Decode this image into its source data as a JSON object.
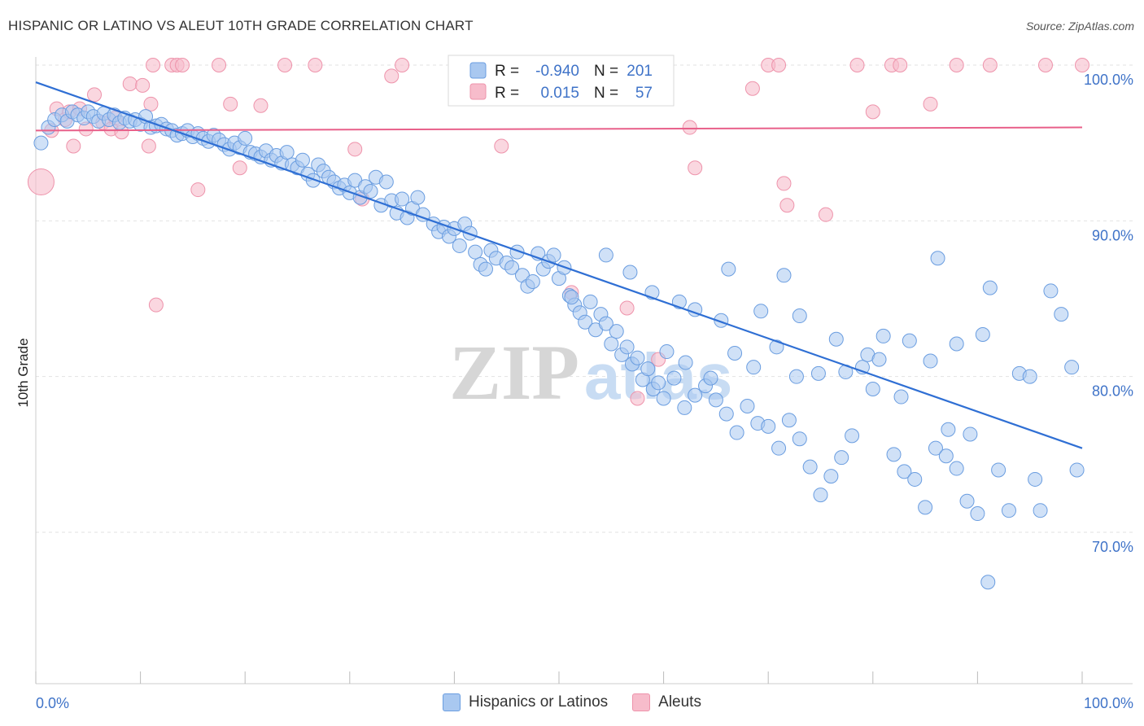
{
  "header": {
    "title": "HISPANIC OR LATINO VS ALEUT 10TH GRADE CORRELATION CHART",
    "source": "Source: ZipAtlas.com"
  },
  "watermark": {
    "zip": "ZIP",
    "atlas": "atlas"
  },
  "legend": {
    "rows": [
      {
        "r_label": "R =",
        "r_value": "-0.940",
        "n_label": "N =",
        "n_value": "201"
      },
      {
        "r_label": "R =",
        "r_value": "0.015",
        "n_label": "N =",
        "n_value": "57"
      }
    ]
  },
  "bottom_legend": {
    "series1": "Hispanics or Latinos",
    "series2": "Aleuts"
  },
  "colors": {
    "blue_fill": "#a9c8f0",
    "blue_stroke": "#6a9de0",
    "blue_line": "#2f6fd4",
    "pink_fill": "#f7bccb",
    "pink_stroke": "#ee93ab",
    "pink_line": "#e8608a",
    "axis_text": "#3f73c8"
  },
  "chart_data": {
    "type": "scatter",
    "xlabel": "",
    "ylabel": "10th Grade",
    "xlim": [
      0,
      100
    ],
    "ylim": [
      60.5,
      101
    ],
    "x_tick_labels": {
      "left": "0.0%",
      "right": "100.0%"
    },
    "y_ticks": [
      {
        "value": 100,
        "label": "100.0%"
      },
      {
        "value": 90,
        "label": "90.0%"
      },
      {
        "value": 80,
        "label": "80.0%"
      },
      {
        "value": 70,
        "label": "70.0%"
      }
    ],
    "series": [
      {
        "name": "Hispanics or Latinos",
        "trend": {
          "x1": 0,
          "y1": 98.9,
          "x2": 100,
          "y2": 75.4
        },
        "points": [
          [
            0.5,
            95.0
          ],
          [
            1.2,
            96.0
          ],
          [
            1.8,
            96.5
          ],
          [
            2.5,
            96.8
          ],
          [
            3.0,
            96.4
          ],
          [
            3.5,
            97.0
          ],
          [
            4.0,
            96.8
          ],
          [
            4.6,
            96.6
          ],
          [
            5.0,
            97.0
          ],
          [
            5.5,
            96.7
          ],
          [
            6.0,
            96.4
          ],
          [
            6.5,
            96.9
          ],
          [
            7.0,
            96.5
          ],
          [
            7.5,
            96.8
          ],
          [
            8.0,
            96.3
          ],
          [
            8.5,
            96.6
          ],
          [
            9.0,
            96.4
          ],
          [
            9.5,
            96.5
          ],
          [
            10.0,
            96.2
          ],
          [
            10.5,
            96.7
          ],
          [
            11.0,
            96.0
          ],
          [
            11.5,
            96.1
          ],
          [
            12.0,
            96.2
          ],
          [
            12.5,
            95.9
          ],
          [
            13.0,
            95.8
          ],
          [
            13.5,
            95.5
          ],
          [
            14.0,
            95.6
          ],
          [
            14.5,
            95.8
          ],
          [
            15.0,
            95.4
          ],
          [
            15.5,
            95.6
          ],
          [
            16.0,
            95.3
          ],
          [
            16.5,
            95.1
          ],
          [
            17.0,
            95.5
          ],
          [
            17.5,
            95.2
          ],
          [
            18.0,
            94.9
          ],
          [
            18.5,
            94.6
          ],
          [
            19.0,
            95.0
          ],
          [
            19.5,
            94.7
          ],
          [
            20.0,
            95.3
          ],
          [
            20.5,
            94.4
          ],
          [
            21.0,
            94.3
          ],
          [
            21.5,
            94.1
          ],
          [
            22.0,
            94.5
          ],
          [
            22.5,
            93.9
          ],
          [
            23.0,
            94.2
          ],
          [
            23.5,
            93.7
          ],
          [
            24.0,
            94.4
          ],
          [
            24.5,
            93.6
          ],
          [
            25.0,
            93.4
          ],
          [
            25.5,
            93.9
          ],
          [
            26.0,
            93.0
          ],
          [
            26.5,
            92.6
          ],
          [
            27.0,
            93.6
          ],
          [
            27.5,
            93.2
          ],
          [
            28.0,
            92.8
          ],
          [
            28.5,
            92.5
          ],
          [
            29.0,
            92.1
          ],
          [
            29.5,
            92.3
          ],
          [
            30.0,
            91.8
          ],
          [
            30.5,
            92.6
          ],
          [
            31.0,
            91.5
          ],
          [
            31.5,
            92.2
          ],
          [
            32.0,
            91.9
          ],
          [
            32.5,
            92.8
          ],
          [
            33.0,
            91.0
          ],
          [
            33.5,
            92.5
          ],
          [
            34.0,
            91.3
          ],
          [
            34.5,
            90.5
          ],
          [
            35.0,
            91.4
          ],
          [
            35.5,
            90.2
          ],
          [
            36.0,
            90.8
          ],
          [
            36.5,
            91.5
          ],
          [
            37.0,
            90.4
          ],
          [
            38.0,
            89.8
          ],
          [
            38.5,
            89.3
          ],
          [
            39.0,
            89.6
          ],
          [
            39.5,
            89.0
          ],
          [
            40.0,
            89.5
          ],
          [
            40.5,
            88.4
          ],
          [
            41.0,
            89.8
          ],
          [
            41.5,
            89.2
          ],
          [
            42.0,
            88.0
          ],
          [
            42.5,
            87.2
          ],
          [
            43.0,
            86.9
          ],
          [
            43.5,
            88.1
          ],
          [
            44.0,
            87.6
          ],
          [
            45.0,
            87.3
          ],
          [
            45.5,
            87.0
          ],
          [
            46.0,
            88.0
          ],
          [
            46.5,
            86.5
          ],
          [
            47.0,
            85.8
          ],
          [
            47.5,
            86.1
          ],
          [
            48.0,
            87.9
          ],
          [
            48.5,
            86.9
          ],
          [
            49.0,
            87.4
          ],
          [
            49.5,
            87.8
          ],
          [
            50.0,
            86.3
          ],
          [
            50.5,
            87.0
          ],
          [
            51.0,
            85.2
          ],
          [
            51.5,
            84.6
          ],
          [
            52.0,
            84.1
          ],
          [
            52.5,
            83.5
          ],
          [
            53.0,
            84.8
          ],
          [
            53.5,
            83.0
          ],
          [
            54.0,
            84.0
          ],
          [
            54.5,
            83.4
          ],
          [
            55.0,
            82.1
          ],
          [
            55.5,
            82.9
          ],
          [
            56.0,
            81.4
          ],
          [
            56.5,
            81.9
          ],
          [
            57.0,
            80.8
          ],
          [
            57.5,
            81.2
          ],
          [
            58.0,
            79.8
          ],
          [
            58.5,
            80.5
          ],
          [
            59.0,
            79.2
          ],
          [
            59.5,
            79.6
          ],
          [
            60.0,
            78.6
          ],
          [
            61.0,
            79.9
          ],
          [
            62.0,
            78.0
          ],
          [
            63.0,
            78.8
          ],
          [
            64.0,
            79.4
          ],
          [
            65.0,
            78.5
          ],
          [
            66.0,
            77.6
          ],
          [
            67.0,
            76.4
          ],
          [
            68.0,
            78.1
          ],
          [
            69.0,
            77.0
          ],
          [
            70.0,
            76.8
          ],
          [
            71.0,
            75.4
          ],
          [
            72.0,
            77.2
          ],
          [
            73.0,
            76.0
          ],
          [
            74.0,
            74.2
          ],
          [
            75.0,
            72.4
          ],
          [
            76.0,
            73.6
          ],
          [
            77.0,
            74.8
          ],
          [
            78.0,
            76.2
          ],
          [
            79.0,
            80.6
          ],
          [
            80.0,
            79.2
          ],
          [
            81.0,
            82.6
          ],
          [
            82.0,
            75.0
          ],
          [
            83.0,
            73.9
          ],
          [
            84.0,
            73.4
          ],
          [
            85.0,
            71.6
          ],
          [
            86.0,
            75.4
          ],
          [
            87.0,
            74.9
          ],
          [
            88.0,
            74.1
          ],
          [
            89.0,
            72.0
          ],
          [
            90.0,
            71.2
          ],
          [
            91.0,
            66.8
          ],
          [
            92.0,
            74.0
          ],
          [
            93.0,
            71.4
          ],
          [
            94.0,
            80.2
          ],
          [
            95.0,
            80.0
          ],
          [
            95.5,
            73.4
          ],
          [
            96.0,
            71.4
          ],
          [
            97.0,
            85.5
          ],
          [
            98.0,
            84.0
          ],
          [
            99.0,
            80.6
          ],
          [
            99.5,
            74.0
          ],
          [
            51.2,
            85.1
          ],
          [
            54.5,
            87.8
          ],
          [
            56.8,
            86.7
          ],
          [
            58.9,
            85.4
          ],
          [
            61.5,
            84.8
          ],
          [
            63.0,
            84.3
          ],
          [
            65.5,
            83.6
          ],
          [
            69.3,
            84.2
          ],
          [
            73.0,
            83.9
          ],
          [
            76.5,
            82.4
          ],
          [
            79.5,
            81.4
          ],
          [
            83.5,
            82.3
          ],
          [
            88.0,
            82.1
          ],
          [
            91.2,
            85.7
          ],
          [
            90.5,
            82.7
          ],
          [
            85.5,
            81.0
          ],
          [
            86.2,
            87.6
          ],
          [
            66.8,
            81.5
          ],
          [
            70.8,
            81.9
          ],
          [
            74.8,
            80.2
          ],
          [
            77.4,
            80.3
          ],
          [
            80.6,
            81.1
          ],
          [
            82.7,
            78.7
          ],
          [
            87.2,
            76.6
          ],
          [
            89.3,
            76.3
          ],
          [
            72.7,
            80.0
          ],
          [
            68.6,
            80.6
          ],
          [
            64.5,
            79.9
          ],
          [
            62.1,
            80.9
          ],
          [
            60.3,
            81.6
          ],
          [
            71.5,
            86.5
          ],
          [
            66.2,
            86.9
          ]
        ]
      },
      {
        "name": "Aleuts",
        "trend": {
          "x1": 0,
          "y1": 95.8,
          "x2": 100,
          "y2": 96.0
        },
        "points": [
          [
            0.5,
            92.5
          ],
          [
            1.5,
            95.8
          ],
          [
            2.0,
            97.2
          ],
          [
            2.8,
            96.5
          ],
          [
            3.2,
            97.0
          ],
          [
            3.6,
            94.8
          ],
          [
            4.2,
            97.2
          ],
          [
            4.8,
            95.9
          ],
          [
            5.6,
            98.1
          ],
          [
            6.4,
            96.3
          ],
          [
            7.2,
            95.9
          ],
          [
            7.6,
            96.6
          ],
          [
            8.2,
            95.7
          ],
          [
            9.0,
            98.8
          ],
          [
            10.2,
            98.7
          ],
          [
            10.8,
            94.8
          ],
          [
            11.5,
            84.6
          ],
          [
            11.2,
            100.0
          ],
          [
            11.0,
            97.5
          ],
          [
            13.0,
            100.0
          ],
          [
            13.5,
            100.0
          ],
          [
            14.0,
            100.0
          ],
          [
            15.5,
            92.0
          ],
          [
            17.5,
            100.0
          ],
          [
            18.6,
            97.5
          ],
          [
            19.5,
            93.4
          ],
          [
            21.5,
            97.4
          ],
          [
            23.8,
            100.0
          ],
          [
            26.7,
            100.0
          ],
          [
            30.5,
            94.6
          ],
          [
            31.2,
            91.4
          ],
          [
            34.0,
            99.3
          ],
          [
            35.0,
            100.0
          ],
          [
            44.5,
            94.8
          ],
          [
            46.5,
            100.0
          ],
          [
            51.2,
            85.4
          ],
          [
            53.0,
            100.0
          ],
          [
            56.5,
            84.4
          ],
          [
            57.5,
            78.6
          ],
          [
            59.5,
            81.1
          ],
          [
            62.5,
            96.0
          ],
          [
            63.0,
            93.4
          ],
          [
            68.5,
            98.5
          ],
          [
            70.0,
            100.0
          ],
          [
            71.0,
            100.0
          ],
          [
            71.5,
            92.4
          ],
          [
            71.8,
            91.0
          ],
          [
            75.5,
            90.4
          ],
          [
            78.5,
            100.0
          ],
          [
            80.0,
            97.0
          ],
          [
            81.8,
            100.0
          ],
          [
            82.6,
            100.0
          ],
          [
            85.5,
            97.5
          ],
          [
            88.0,
            100.0
          ],
          [
            91.2,
            100.0
          ],
          [
            96.5,
            100.0
          ],
          [
            100.0,
            100.0
          ]
        ]
      }
    ]
  }
}
